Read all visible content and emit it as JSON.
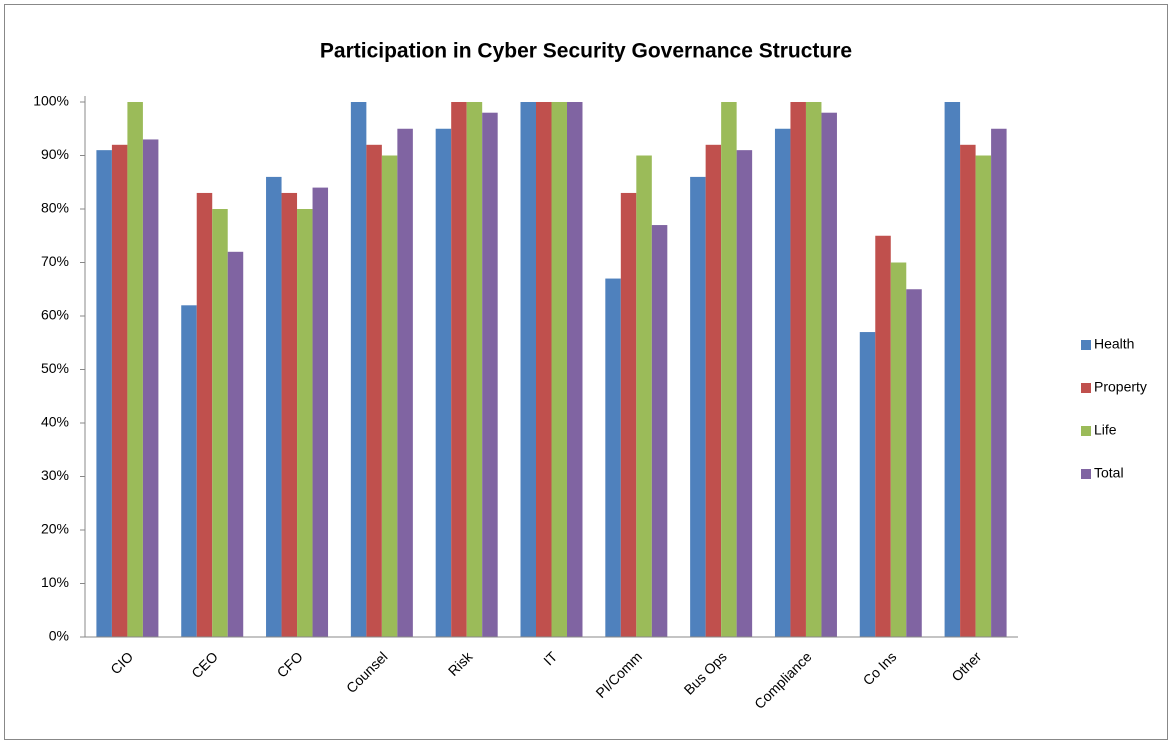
{
  "chart_data": {
    "type": "bar",
    "title": "Participation in Cyber Security Governance Structure",
    "categories": [
      "CIO",
      "CEO",
      "CFO",
      "Counsel",
      "Risk",
      "IT",
      "PI/Comm",
      "Bus Ops",
      "Compliance",
      "Co Ins",
      "Other"
    ],
    "series": [
      {
        "name": "Health",
        "color": "#4f81bd",
        "values": [
          91,
          62,
          86,
          100,
          95,
          100,
          67,
          86,
          95,
          57,
          100
        ]
      },
      {
        "name": "Property",
        "color": "#c0504d",
        "values": [
          92,
          83,
          83,
          92,
          100,
          100,
          83,
          92,
          100,
          75,
          92
        ]
      },
      {
        "name": "Life",
        "color": "#9bbb59",
        "values": [
          100,
          80,
          80,
          90,
          100,
          100,
          90,
          100,
          100,
          70,
          90
        ]
      },
      {
        "name": "Total",
        "color": "#8064a2",
        "values": [
          93,
          72,
          84,
          95,
          98,
          100,
          77,
          91,
          98,
          65,
          95
        ]
      }
    ],
    "ylim": [
      0,
      100
    ],
    "yticks": [
      {
        "value": 0,
        "label": "0%"
      },
      {
        "value": 10,
        "label": "10%"
      },
      {
        "value": 20,
        "label": "20%"
      },
      {
        "value": 30,
        "label": "30%"
      },
      {
        "value": 40,
        "label": "40%"
      },
      {
        "value": 50,
        "label": "50%"
      },
      {
        "value": 60,
        "label": "60%"
      },
      {
        "value": 70,
        "label": "70%"
      },
      {
        "value": 80,
        "label": "80%"
      },
      {
        "value": 90,
        "label": "90%"
      },
      {
        "value": 100,
        "label": "100%"
      }
    ],
    "grid": false,
    "legend": "right"
  }
}
